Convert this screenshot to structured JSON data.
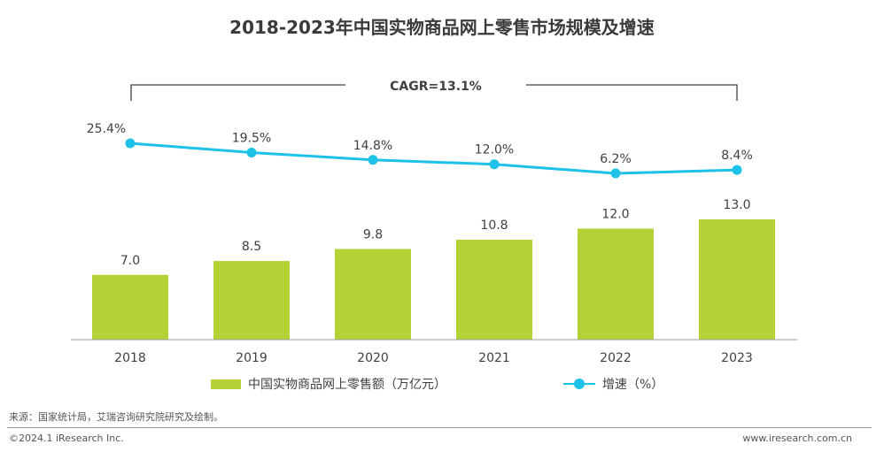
{
  "chart_data": {
    "type": "bar",
    "title": "2018-2023年中国实物商品网上零售市场规模及增速",
    "categories": [
      "2018",
      "2019",
      "2020",
      "2021",
      "2022",
      "2023"
    ],
    "series": [
      {
        "name": "中国实物商品网上零售额（万亿元）",
        "type": "bar",
        "values": [
          7.0,
          8.5,
          9.8,
          10.8,
          12.0,
          13.0
        ],
        "labels": [
          "7.0",
          "8.5",
          "9.8",
          "10.8",
          "12.0",
          "13.0"
        ]
      },
      {
        "name": "增速（%）",
        "type": "line",
        "values": [
          25.4,
          19.5,
          14.8,
          12.0,
          6.2,
          8.4
        ],
        "labels": [
          "25.4%",
          "19.5%",
          "14.8%",
          "12.0%",
          "6.2%",
          "8.4%"
        ]
      }
    ],
    "annotation": "CAGR=13.1%",
    "ylim_bar": [
      0,
      13.0
    ],
    "ylim_line": [
      0,
      30
    ],
    "colors": {
      "bar": "#b2d235",
      "line": "#1ec1e8"
    }
  },
  "legend": {
    "bar_label": "中国实物商品网上零售额（万亿元）",
    "line_label": "增速（%）"
  },
  "source": "来源：国家统计局，艾瑞咨询研究院研究及绘制。",
  "footer": {
    "copyright": "©2024.1 iResearch Inc.",
    "website": "www.iresearch.com.cn"
  }
}
